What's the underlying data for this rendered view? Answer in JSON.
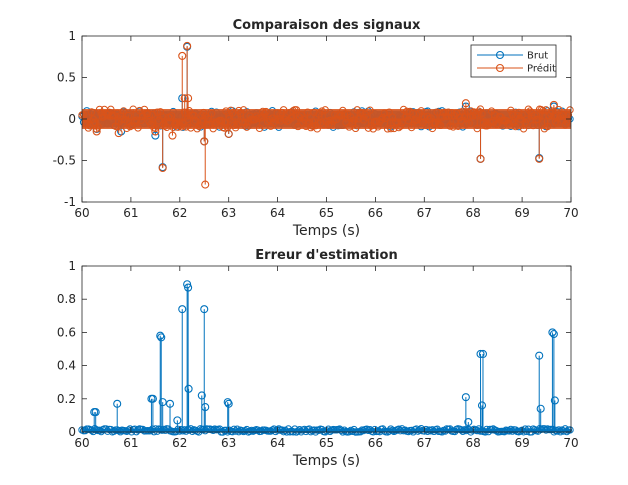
{
  "colors": {
    "brut": "#0072BD",
    "predit": "#D95319",
    "axis": "#262626"
  },
  "chart_data": [
    {
      "type": "stem",
      "title": "Comparaison des signaux",
      "xlabel": "Temps (s)",
      "ylabel": "",
      "xlim": [
        60,
        70
      ],
      "ylim": [
        -1,
        1
      ],
      "xticks": [
        "60",
        "61",
        "62",
        "63",
        "64",
        "65",
        "66",
        "67",
        "68",
        "69",
        "70"
      ],
      "yticks": [
        "-1",
        "-0.5",
        "0",
        "0.5",
        "1"
      ],
      "legend": {
        "position": "top-right",
        "entries": [
          "Brut",
          "Prédit"
        ]
      },
      "series": [
        {
          "name": "Brut",
          "color": "#0072BD",
          "noise_band": [
            -0.1,
            0.1
          ],
          "x": [
            60.3,
            60.8,
            61.5,
            61.65,
            62.05,
            62.15,
            62.5,
            63.0,
            67.85,
            68.15,
            69.35,
            69.65
          ],
          "y": [
            -0.12,
            -0.15,
            -0.2,
            -0.58,
            0.25,
            0.87,
            -0.27,
            -0.18,
            0.15,
            -0.48,
            -0.47,
            0.15
          ]
        },
        {
          "name": "Prédit",
          "color": "#D95319",
          "noise_band": [
            -0.12,
            0.12
          ],
          "x": [
            60.3,
            60.75,
            61.5,
            61.65,
            61.85,
            62.05,
            62.1,
            62.15,
            62.17,
            62.5,
            62.52,
            63.0,
            67.85,
            68.15,
            69.35,
            69.65
          ],
          "y": [
            -0.15,
            -0.17,
            -0.15,
            -0.59,
            -0.2,
            0.76,
            0.25,
            0.88,
            0.25,
            -0.27,
            -0.79,
            -0.18,
            0.19,
            -0.48,
            -0.48,
            0.17
          ]
        }
      ]
    },
    {
      "type": "stem",
      "title": "Erreur d'estimation",
      "xlabel": "Temps (s)",
      "ylabel": "",
      "xlim": [
        60,
        70
      ],
      "ylim": [
        0,
        1
      ],
      "xticks": [
        "60",
        "61",
        "62",
        "63",
        "64",
        "65",
        "66",
        "67",
        "68",
        "69",
        "70"
      ],
      "yticks": [
        "0",
        "0.2",
        "0.4",
        "0.6",
        "0.8",
        "1"
      ],
      "series": [
        {
          "name": "",
          "color": "#0072BD",
          "noise_band": [
            0,
            0.02
          ],
          "x": [
            60.25,
            60.28,
            60.72,
            61.42,
            61.45,
            61.6,
            61.62,
            61.65,
            61.8,
            61.95,
            62.05,
            62.15,
            62.17,
            62.18,
            62.45,
            62.5,
            62.52,
            62.98,
            63.0,
            67.85,
            67.9,
            68.15,
            68.18,
            68.2,
            69.35,
            69.38,
            69.62,
            69.65,
            69.67
          ],
          "y": [
            0.12,
            0.12,
            0.17,
            0.2,
            0.2,
            0.58,
            0.57,
            0.18,
            0.17,
            0.07,
            0.74,
            0.89,
            0.87,
            0.26,
            0.22,
            0.74,
            0.15,
            0.18,
            0.17,
            0.21,
            0.06,
            0.47,
            0.16,
            0.47,
            0.46,
            0.14,
            0.6,
            0.59,
            0.19
          ]
        }
      ]
    }
  ]
}
